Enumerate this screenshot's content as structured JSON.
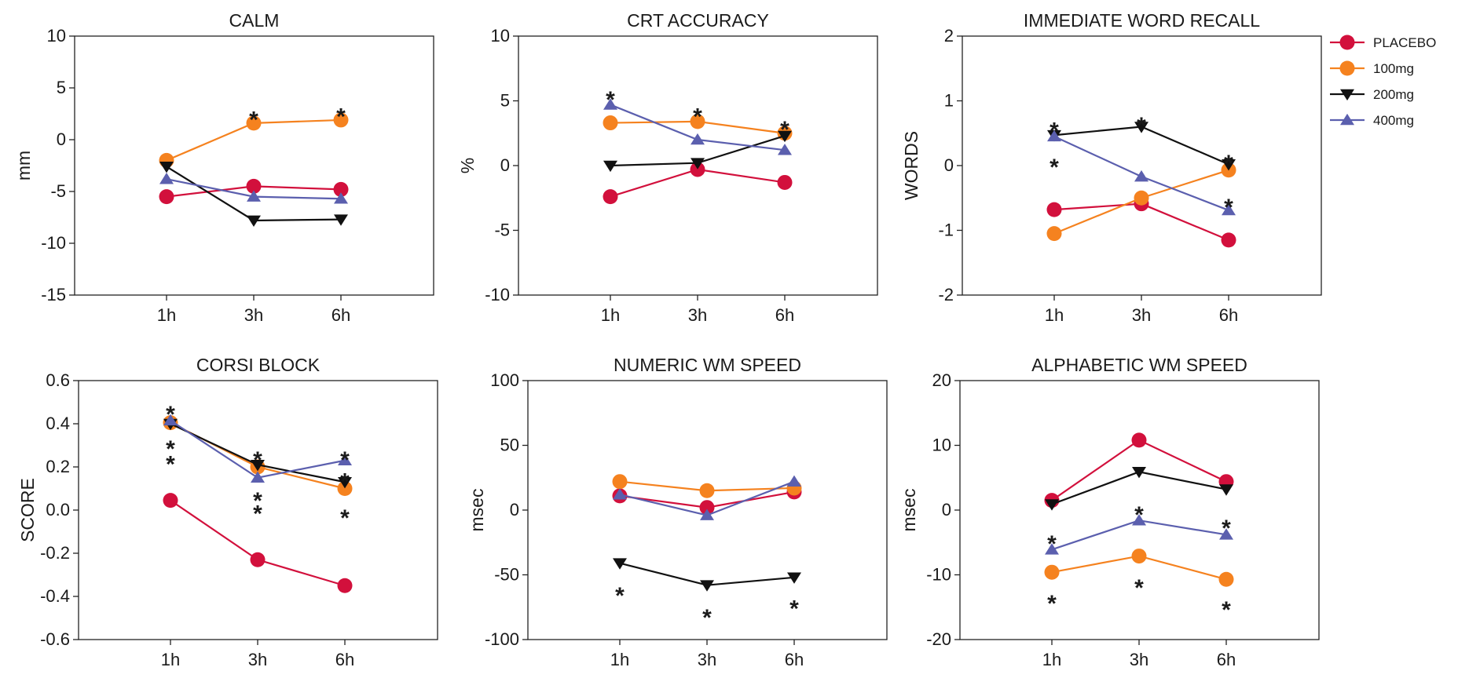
{
  "series_styles": [
    {
      "name": "PLACEBO",
      "color": "#d2103c",
      "marker": "circle"
    },
    {
      "name": "100mg",
      "color": "#f5821f",
      "marker": "circle"
    },
    {
      "name": "200mg",
      "color": "#111111",
      "marker": "triangle-down"
    },
    {
      "name": "400mg",
      "color": "#5b5fae",
      "marker": "triangle-up"
    }
  ],
  "legend_position": "right",
  "chart_data": [
    {
      "type": "line",
      "title": "CALM",
      "ylabel": "mm",
      "categories": [
        "1h",
        "3h",
        "6h"
      ],
      "ylim": [
        -15,
        10
      ],
      "yticks": [
        10,
        5,
        0,
        -5,
        -10,
        -15
      ],
      "series": [
        {
          "name": "PLACEBO",
          "values": [
            -5.5,
            -4.5,
            -4.8
          ]
        },
        {
          "name": "100mg",
          "values": [
            -2,
            1.6,
            1.9
          ]
        },
        {
          "name": "200mg",
          "values": [
            -2.6,
            -7.8,
            -7.7
          ]
        },
        {
          "name": "400mg",
          "values": [
            -3.8,
            -5.5,
            -5.7
          ]
        }
      ],
      "annotations": [
        {
          "label": "*",
          "category": "3h",
          "y": 2.7
        },
        {
          "label": "*",
          "category": "6h",
          "y": 3.0
        }
      ]
    },
    {
      "type": "line",
      "title": "CRT ACCURACY",
      "ylabel": "%",
      "categories": [
        "1h",
        "3h",
        "6h"
      ],
      "ylim": [
        -10,
        10
      ],
      "yticks": [
        10,
        5,
        0,
        -5,
        -10
      ],
      "series": [
        {
          "name": "PLACEBO",
          "values": [
            -2.4,
            -0.3,
            -1.3
          ]
        },
        {
          "name": "100mg",
          "values": [
            3.3,
            3.4,
            2.5
          ]
        },
        {
          "name": "200mg",
          "values": [
            0,
            0.2,
            2.3
          ]
        },
        {
          "name": "400mg",
          "values": [
            4.7,
            2,
            1.2
          ]
        }
      ],
      "annotations": [
        {
          "label": "*",
          "category": "1h",
          "y": 5.7
        },
        {
          "label": "*",
          "category": "3h",
          "y": 4.4
        },
        {
          "label": "*",
          "category": "6h",
          "y": 3.4
        }
      ]
    },
    {
      "type": "line",
      "title": "IMMEDIATE WORD RECALL",
      "ylabel": "WORDS",
      "categories": [
        "1h",
        "3h",
        "6h"
      ],
      "ylim": [
        -2,
        2
      ],
      "yticks": [
        2,
        1,
        0,
        -1,
        -2
      ],
      "series": [
        {
          "name": "PLACEBO",
          "values": [
            -0.68,
            -0.59,
            -1.15
          ]
        },
        {
          "name": "100mg",
          "values": [
            -1.05,
            -0.5,
            -0.07
          ]
        },
        {
          "name": "200mg",
          "values": [
            0.47,
            0.6,
            0.02
          ]
        },
        {
          "name": "400mg",
          "values": [
            0.45,
            -0.17,
            -0.69
          ]
        }
      ],
      "annotations": [
        {
          "label": "*",
          "category": "1h",
          "y": 0.66
        },
        {
          "label": "*",
          "category": "1h",
          "y": 0.1
        },
        {
          "label": "*",
          "category": "3h",
          "y": 0.74
        },
        {
          "label": "*",
          "category": "6h",
          "y": 0.16
        },
        {
          "label": "*",
          "category": "6h",
          "y": -0.52
        }
      ]
    },
    {
      "type": "line",
      "title": "CORSI BLOCK",
      "ylabel": "SCORE",
      "categories": [
        "1h",
        "3h",
        "6h"
      ],
      "ylim": [
        -0.6,
        0.6
      ],
      "yticks": [
        0.6,
        0.4,
        0.2,
        0.0,
        -0.2,
        -0.4,
        -0.6
      ],
      "ytick_labels": [
        "0.6",
        "0.4",
        "0.2",
        "0.0",
        "-0.2",
        "-0.4",
        "-0.6"
      ],
      "series": [
        {
          "name": "PLACEBO",
          "values": [
            0.045,
            -0.23,
            -0.35
          ]
        },
        {
          "name": "100mg",
          "values": [
            0.405,
            0.2,
            0.1
          ]
        },
        {
          "name": "200mg",
          "values": [
            0.4,
            0.21,
            0.13
          ]
        },
        {
          "name": "400mg",
          "values": [
            0.415,
            0.15,
            0.23
          ]
        }
      ],
      "annotations": [
        {
          "label": "*",
          "category": "1h",
          "y": 0.48
        },
        {
          "label": "*",
          "category": "1h",
          "y": 0.32
        },
        {
          "label": "*",
          "category": "1h",
          "y": 0.25
        },
        {
          "label": "*",
          "category": "3h",
          "y": 0.27
        },
        {
          "label": "*",
          "category": "3h",
          "y": 0.08
        },
        {
          "label": "*",
          "category": "3h",
          "y": 0.02
        },
        {
          "label": "*",
          "category": "6h",
          "y": 0.27
        },
        {
          "label": "*",
          "category": "6h",
          "y": 0.17
        },
        {
          "label": "*",
          "category": "6h",
          "y": 0.0
        }
      ]
    },
    {
      "type": "line",
      "title": "NUMERIC WM SPEED",
      "ylabel": "msec",
      "categories": [
        "1h",
        "3h",
        "6h"
      ],
      "ylim": [
        -100,
        100
      ],
      "yticks": [
        100,
        50,
        0,
        -50,
        -100
      ],
      "series": [
        {
          "name": "PLACEBO",
          "values": [
            11,
            2,
            14
          ]
        },
        {
          "name": "100mg",
          "values": [
            22,
            15,
            17
          ]
        },
        {
          "name": "200mg",
          "values": [
            -41,
            -58,
            -52
          ]
        },
        {
          "name": "400mg",
          "values": [
            12,
            -4,
            22
          ]
        }
      ],
      "annotations": [
        {
          "label": "*",
          "category": "1h",
          "y": -60
        },
        {
          "label": "*",
          "category": "3h",
          "y": -77
        },
        {
          "label": "*",
          "category": "6h",
          "y": -70
        }
      ]
    },
    {
      "type": "line",
      "title": "ALPHABETIC WM SPEED",
      "ylabel": "msec",
      "categories": [
        "1h",
        "3h",
        "6h"
      ],
      "ylim": [
        -20,
        20
      ],
      "yticks": [
        20,
        10,
        0,
        -10,
        -20
      ],
      "series": [
        {
          "name": "PLACEBO",
          "values": [
            1.5,
            10.8,
            4.4
          ]
        },
        {
          "name": "100mg",
          "values": [
            -9.6,
            -7.1,
            -10.7
          ]
        },
        {
          "name": "200mg",
          "values": [
            0.9,
            5.9,
            3.2
          ]
        },
        {
          "name": "400mg",
          "values": [
            -6.1,
            -1.6,
            -3.8
          ]
        }
      ],
      "annotations": [
        {
          "label": "*",
          "category": "1h",
          "y": -4.0
        },
        {
          "label": "*",
          "category": "1h",
          "y": -13.2
        },
        {
          "label": "*",
          "category": "3h",
          "y": 0.5
        },
        {
          "label": "*",
          "category": "3h",
          "y": -10.8
        },
        {
          "label": "*",
          "category": "6h",
          "y": -1.6
        },
        {
          "label": "*",
          "category": "6h",
          "y": -14.2
        }
      ]
    }
  ]
}
